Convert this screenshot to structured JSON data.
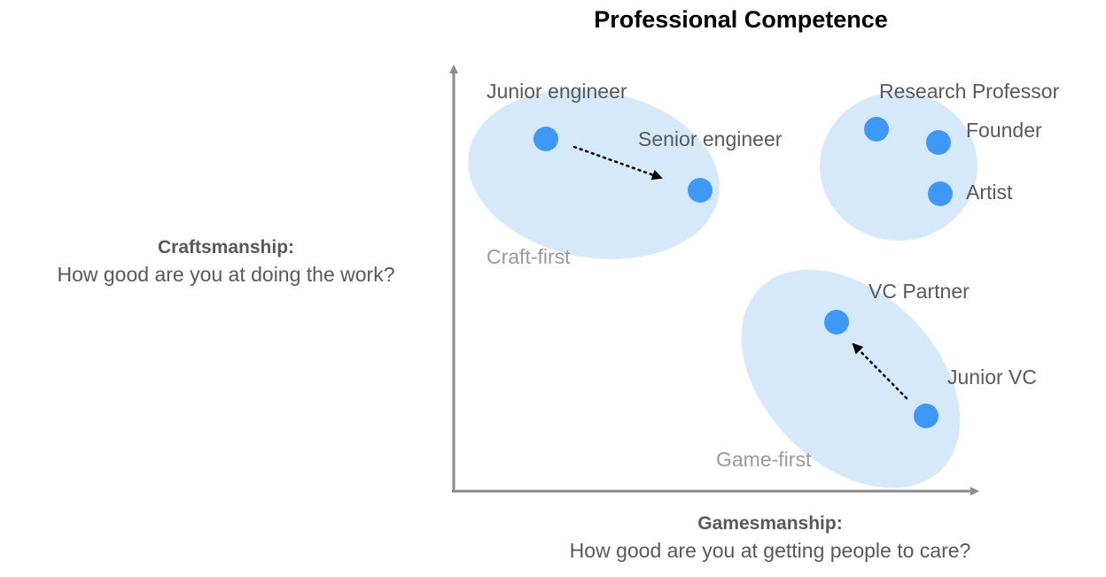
{
  "title": "Professional Competence",
  "y_axis": {
    "heading": "Craftsmanship:",
    "question": "How good are you at doing the work?"
  },
  "x_axis": {
    "heading": "Gamesmanship:",
    "question": "How good are you at getting people to care?"
  },
  "clusters": [
    {
      "label": "Craft-first"
    },
    {
      "label": "Game-first"
    }
  ],
  "points": [
    {
      "label": "Junior engineer"
    },
    {
      "label": "Senior engineer"
    },
    {
      "label": "Research Professor"
    },
    {
      "label": "Founder"
    },
    {
      "label": "Artist"
    },
    {
      "label": "VC Partner"
    },
    {
      "label": "Junior VC"
    }
  ],
  "colors": {
    "title": "#000000",
    "text": "#595959",
    "cluster_text": "#9a9a9a",
    "axis": "#8c8c8c",
    "cluster_fill": "#d6e9fb",
    "point": "#3d99f5",
    "arrow": "#000000"
  }
}
